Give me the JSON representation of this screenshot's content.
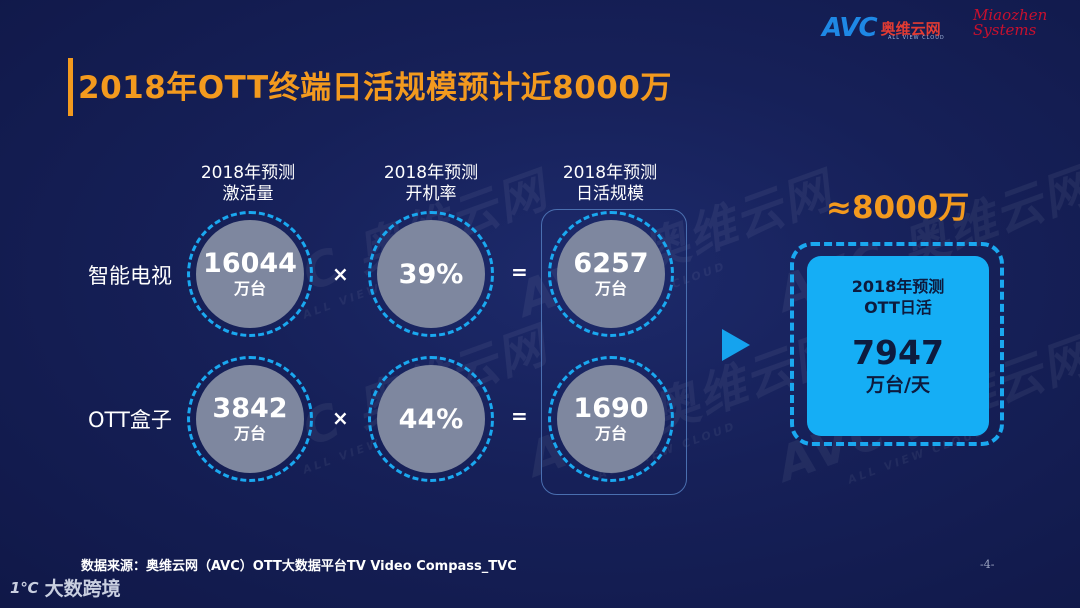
{
  "title": "2018年OTT终端日活规模预计近8000万",
  "logos": {
    "avc": "AVC",
    "avc_cn": "奥维云网",
    "avc_sub": "ALL VIEW CLOUD",
    "miaozhen_line1": "Miaozhen",
    "miaozhen_line2": "Systems"
  },
  "watermark": {
    "big": "AVC 奥维云网",
    "small": "ALL VIEW CLOUD"
  },
  "columns": [
    {
      "line1": "2018年预测",
      "line2": "激活量"
    },
    {
      "line1": "2018年预测",
      "line2": "开机率"
    },
    {
      "line1": "2018年预测",
      "line2": "日活规模"
    }
  ],
  "rows": [
    {
      "label": "智能电视",
      "activation": "16044",
      "activation_unit": "万台",
      "rate": "39%",
      "daily": "6257",
      "daily_unit": "万台"
    },
    {
      "label": "OTT盒子",
      "activation": "3842",
      "activation_unit": "万台",
      "rate": "44%",
      "daily": "1690",
      "daily_unit": "万台"
    }
  ],
  "operators": {
    "times": "×",
    "equals": "="
  },
  "approx": "≈8000万",
  "total": {
    "line1": "2018年预测",
    "line2": "OTT日活",
    "value": "7947",
    "unit": "万台/天"
  },
  "source": "数据来源：奥维云网（AVC）OTT大数据平台TV Video Compass_TVC",
  "page_number": "-4-",
  "brand": {
    "mark": "1℃",
    "name": "大数跨境"
  },
  "colors": {
    "background": "#141b4d",
    "accent_orange": "#f39a1e",
    "accent_blue": "#15aef5",
    "circle_gray": "#7e879f"
  }
}
